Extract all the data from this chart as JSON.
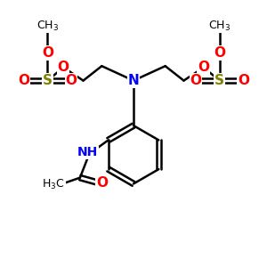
{
  "bg_color": "#ffffff",
  "atom_colors": {
    "C": "#000000",
    "N": "#0000ff",
    "O": "#ff0000",
    "S": "#808000",
    "H": "#000000"
  },
  "bond_color": "#000000",
  "bond_width": 1.8,
  "figsize": [
    3.0,
    3.0
  ],
  "dpi": 100
}
